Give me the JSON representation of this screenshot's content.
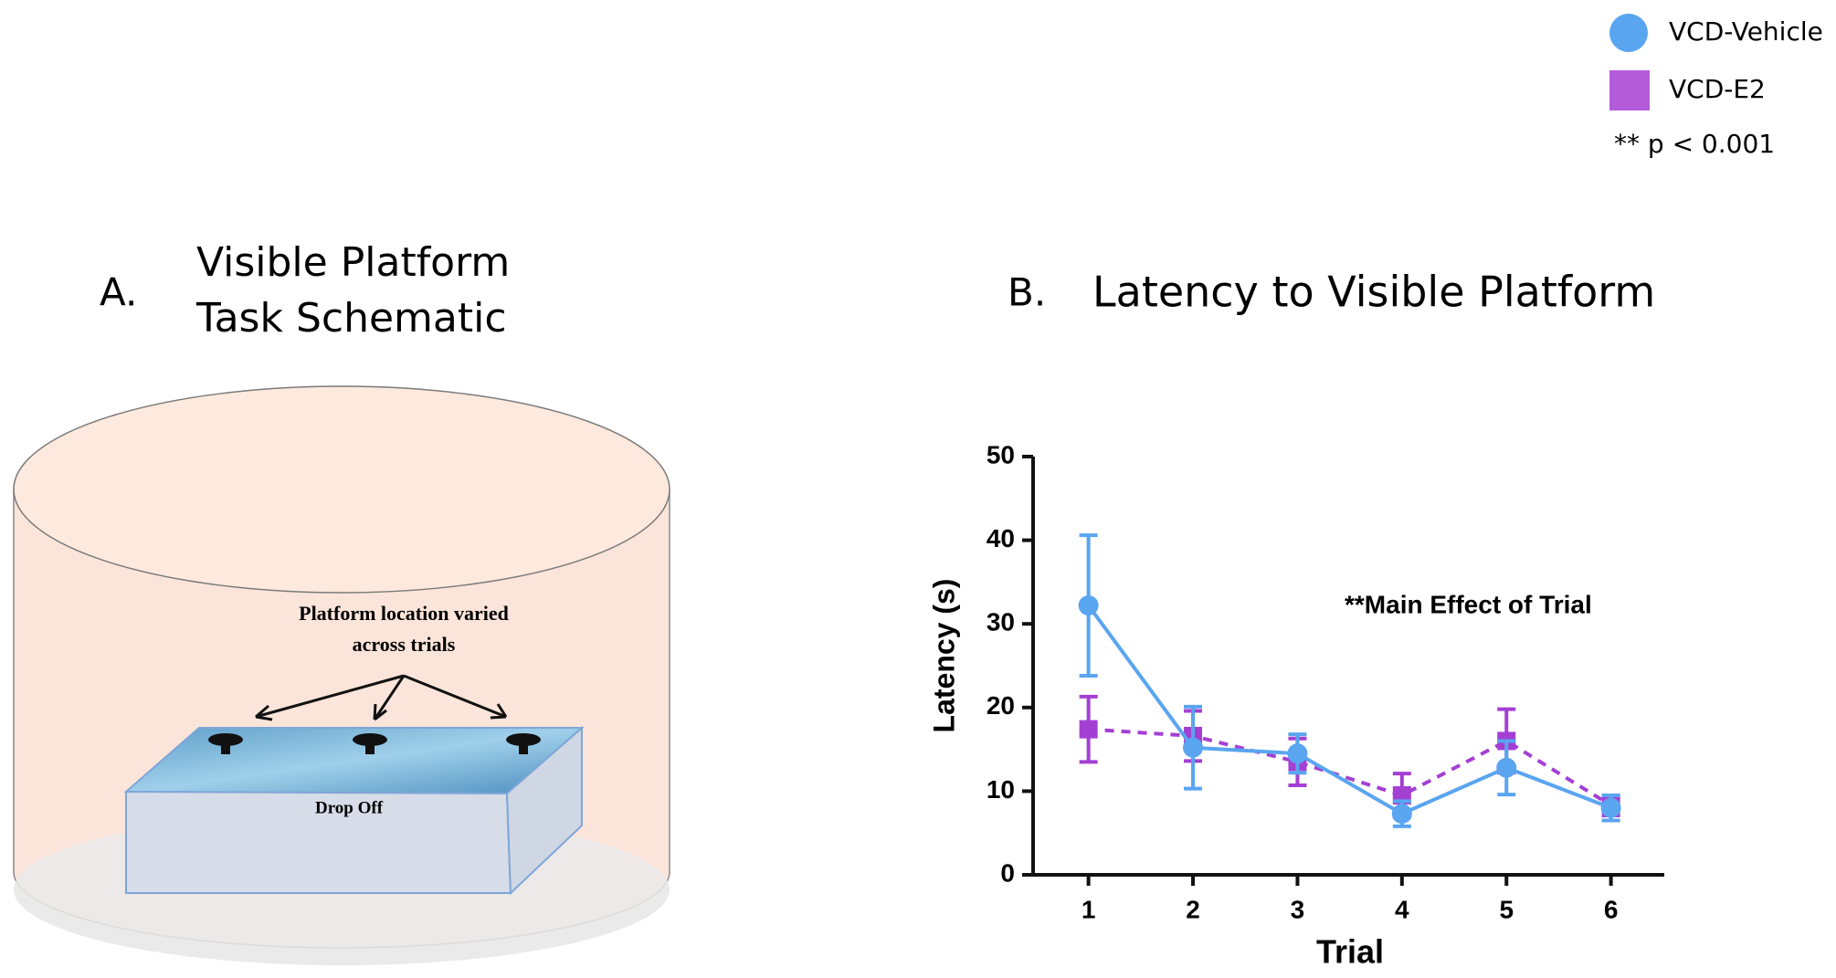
{
  "panel_a": {
    "label": "A.",
    "title_lines": [
      "Visible Platform",
      "Task Schematic"
    ],
    "annotation_lines": [
      "Platform location varied",
      "across trials"
    ],
    "box_label": "Drop Off"
  },
  "chart_data": {
    "type": "line",
    "panel_label": "B.",
    "title": "Latency to Visible Platform",
    "x_label": "Trial",
    "y_label": "Latency (s)",
    "annotation": "**Main Effect of Trial",
    "legend_note": "** p < 0.001",
    "categories": [
      "1",
      "2",
      "3",
      "4",
      "5",
      "6"
    ],
    "series": [
      {
        "name": "VCD-Vehicle",
        "color": "#5aa5f0",
        "marker": "circle",
        "dashed": false,
        "values": [
          32.2,
          15.2,
          14.5,
          7.3,
          12.8,
          8.0
        ],
        "errors": [
          8.4,
          4.9,
          2.3,
          1.5,
          3.2,
          1.5
        ]
      },
      {
        "name": "VCD-E2",
        "color": "#a43fd3",
        "marker": "square",
        "dashed": true,
        "values": [
          17.4,
          16.6,
          13.5,
          9.5,
          16.0,
          8.3
        ],
        "errors": [
          3.9,
          3.0,
          2.8,
          2.6,
          3.8,
          1.2
        ]
      }
    ],
    "ylim": [
      0,
      50
    ],
    "yticks": [
      0,
      10,
      20,
      30,
      40,
      50
    ]
  }
}
